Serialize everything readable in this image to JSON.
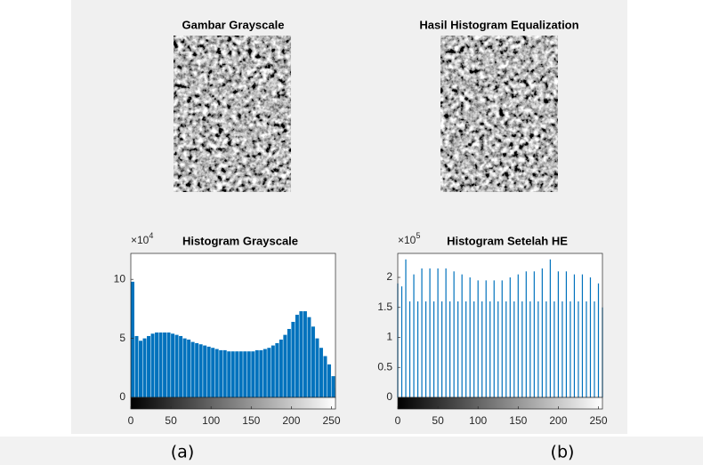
{
  "chart_data": [
    {
      "type": "image",
      "title": "Gambar Grayscale"
    },
    {
      "type": "image",
      "title": "Hasil Histogram Equalization"
    },
    {
      "type": "bar",
      "title": "Histogram Grayscale",
      "y_exponent_base": "×10",
      "y_exponent": "4",
      "color": "#0072bd",
      "x": [
        0,
        5,
        10,
        15,
        20,
        25,
        30,
        35,
        40,
        45,
        50,
        55,
        60,
        65,
        70,
        75,
        80,
        85,
        90,
        95,
        100,
        105,
        110,
        115,
        120,
        125,
        130,
        135,
        140,
        145,
        150,
        155,
        160,
        165,
        170,
        175,
        180,
        185,
        190,
        195,
        200,
        205,
        210,
        215,
        220,
        225,
        230,
        235,
        240,
        245,
        250,
        255
      ],
      "values": [
        9.8,
        5.2,
        4.8,
        5.0,
        5.2,
        5.4,
        5.5,
        5.5,
        5.5,
        5.5,
        5.4,
        5.3,
        5.2,
        5.0,
        4.9,
        4.7,
        4.6,
        4.5,
        4.4,
        4.3,
        4.2,
        4.1,
        4.0,
        4.0,
        3.9,
        3.9,
        3.9,
        3.9,
        3.9,
        3.9,
        3.9,
        4.0,
        4.0,
        4.1,
        4.2,
        4.4,
        4.6,
        4.9,
        5.3,
        5.8,
        6.4,
        7.0,
        7.3,
        7.3,
        6.8,
        6.0,
        5.0,
        4.2,
        3.5,
        2.8,
        1.8,
        0.8
      ],
      "xlim": [
        0,
        255
      ],
      "xticks": [
        0,
        50,
        100,
        150,
        200,
        250
      ],
      "ylim": [
        0,
        12.2
      ],
      "yticks": [
        0,
        5,
        10
      ]
    },
    {
      "type": "stem",
      "title": "Histogram Setelah HE",
      "y_exponent_base": "×10",
      "y_exponent": "5",
      "color": "#0072bd",
      "x": [
        0,
        5,
        10,
        15,
        20,
        25,
        30,
        35,
        40,
        45,
        50,
        55,
        60,
        65,
        70,
        75,
        80,
        85,
        90,
        95,
        100,
        105,
        110,
        115,
        120,
        125,
        130,
        135,
        140,
        145,
        150,
        155,
        160,
        165,
        170,
        175,
        180,
        185,
        190,
        195,
        200,
        205,
        210,
        215,
        220,
        225,
        230,
        235,
        240,
        245,
        250,
        255
      ],
      "values": [
        1.9,
        1.85,
        2.3,
        1.6,
        2.05,
        1.6,
        2.15,
        1.6,
        2.15,
        1.6,
        2.15,
        1.6,
        2.15,
        1.6,
        2.1,
        1.6,
        2.05,
        1.6,
        2.0,
        1.6,
        1.95,
        1.6,
        1.95,
        1.6,
        1.95,
        1.6,
        1.95,
        1.6,
        2.0,
        1.6,
        2.05,
        1.6,
        2.1,
        1.6,
        2.1,
        1.6,
        2.15,
        1.6,
        2.3,
        1.6,
        2.1,
        1.6,
        2.1,
        1.6,
        2.05,
        1.6,
        2.05,
        1.6,
        2.0,
        1.6,
        1.9,
        1.5
      ],
      "xlim": [
        0,
        255
      ],
      "xticks": [
        0,
        50,
        100,
        150,
        200,
        250
      ],
      "ylim": [
        0,
        2.4
      ],
      "yticks": [
        0,
        0.5,
        1,
        1.5,
        2
      ]
    }
  ],
  "captions": [
    "(a)",
    "(b)"
  ]
}
